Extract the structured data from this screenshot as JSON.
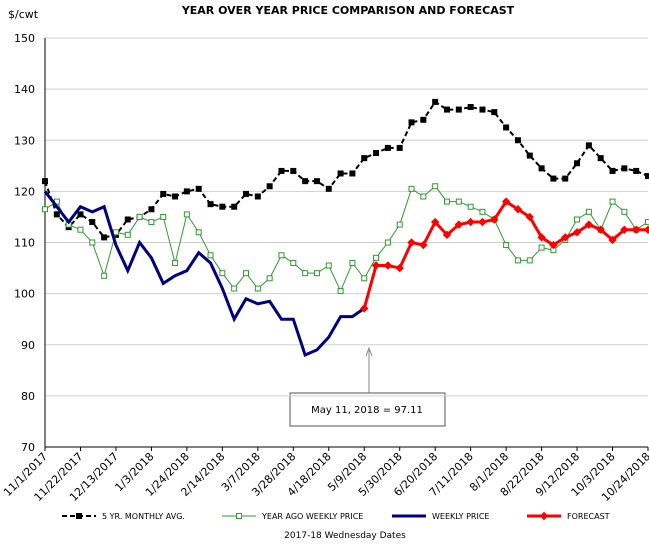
{
  "chart_data": {
    "type": "line",
    "title": "YEAR OVER YEAR PRICE COMPARISON AND FORECAST",
    "y_label": "$/cwt",
    "x_label": "2017-18 Wednesday Dates",
    "annotation": "May 11, 2018  = 97.11",
    "categories": [
      "11/1/2017",
      null,
      null,
      "11/22/2017",
      null,
      null,
      "12/13/2017",
      null,
      null,
      "1/3/2018",
      null,
      null,
      "1/24/2018",
      null,
      null,
      "2/14/2018",
      null,
      null,
      "3/7/2018",
      null,
      null,
      "3/28/2018",
      null,
      null,
      "4/18/2018",
      null,
      null,
      "5/9/2018",
      null,
      null,
      "5/30/2018",
      null,
      null,
      "6/20/2018",
      null,
      null,
      "7/11/2018",
      null,
      null,
      "8/1/2018",
      null,
      null,
      "8/22/2018",
      null,
      null,
      "9/12/2018",
      null,
      null,
      "10/3/2018",
      null,
      null,
      "10/24/2018"
    ],
    "ylim": [
      70,
      150
    ],
    "yticks": [
      70,
      80,
      90,
      100,
      110,
      120,
      130,
      140,
      150
    ],
    "grid": true,
    "series": [
      {
        "name": "5 YR. MONTHLY AVG.",
        "color": "#000000",
        "values": [
          122,
          115.5,
          113,
          115.5,
          114,
          111,
          111.5,
          114.5,
          115,
          116.5,
          119.5,
          119,
          120,
          120.5,
          117.5,
          117,
          117,
          119.5,
          119,
          121,
          124,
          124,
          122,
          122,
          120.5,
          123.5,
          123.5,
          126.5,
          127.5,
          128.5,
          128.5,
          133.5,
          134,
          137.5,
          136,
          136,
          136.5,
          136,
          135.5,
          132.5,
          130,
          127,
          124.5,
          122.5,
          122.5,
          125.5,
          129,
          126.5,
          124,
          124.5,
          124,
          123
        ]
      },
      {
        "name": "YEAR AGO WEEKLY PRICE",
        "color": "#339933",
        "values": [
          116.5,
          118,
          113.5,
          112.5,
          110,
          103.5,
          112,
          111.5,
          115,
          114,
          115,
          106,
          115.5,
          112,
          107.5,
          104,
          101,
          104,
          101,
          103,
          107.5,
          106,
          104,
          104,
          105.5,
          100.5,
          106,
          103,
          107,
          110,
          113.5,
          120.5,
          119,
          121,
          118,
          118,
          117,
          116,
          114.5,
          109.5,
          106.5,
          106.5,
          109,
          108.5,
          110.5,
          114.5,
          116,
          112.5,
          118,
          116,
          112.5,
          114
        ]
      },
      {
        "name": "WEEKLY PRICE",
        "color": "#000080",
        "values": [
          120,
          117,
          114,
          117,
          116,
          117,
          109.5,
          104.5,
          110,
          107,
          102,
          103.5,
          104.5,
          108,
          106,
          101,
          95,
          99,
          98,
          98.5,
          95,
          95,
          88,
          89,
          91.5,
          95.5,
          95.5,
          97.11,
          null,
          null,
          null,
          null,
          null,
          null,
          null,
          null,
          null,
          null,
          null,
          null,
          null,
          null,
          null,
          null,
          null,
          null,
          null,
          null,
          null,
          null,
          null,
          null
        ]
      },
      {
        "name": "FORECAST",
        "color": "#ff0000",
        "values": [
          null,
          null,
          null,
          null,
          null,
          null,
          null,
          null,
          null,
          null,
          null,
          null,
          null,
          null,
          null,
          null,
          null,
          null,
          null,
          null,
          null,
          null,
          null,
          null,
          null,
          null,
          null,
          97.11,
          105.5,
          105.5,
          105,
          110,
          109.5,
          114,
          111.5,
          113.5,
          114,
          114,
          114.5,
          118,
          116.5,
          115,
          111,
          109.5,
          111,
          112,
          113.5,
          112.5,
          110.5,
          112.5,
          112.5,
          112.5
        ]
      }
    ]
  }
}
